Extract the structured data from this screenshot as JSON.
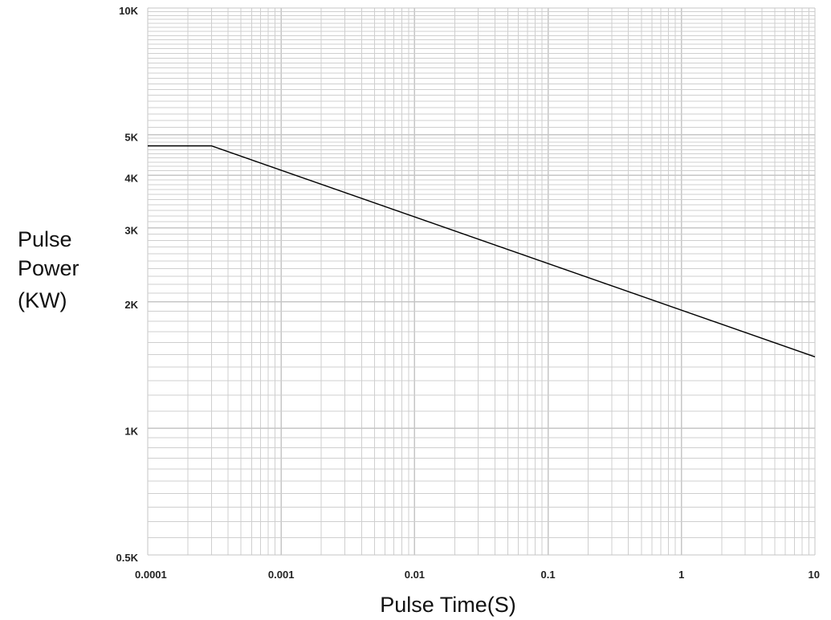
{
  "chart_data": {
    "type": "line",
    "title": "",
    "xlabel": "Pulse Time(S)",
    "ylabel_lines": [
      "Pulse",
      "Power",
      "(KW)"
    ],
    "x_scale": "log",
    "y_scale": "log",
    "xlim": [
      0.0001,
      10
    ],
    "ylim": [
      0.5,
      10
    ],
    "x_ticks": [
      {
        "value": 0.0001,
        "label": "0.0001"
      },
      {
        "value": 0.001,
        "label": "0.001"
      },
      {
        "value": 0.01,
        "label": "0.01"
      },
      {
        "value": 0.1,
        "label": "0.1"
      },
      {
        "value": 1,
        "label": "1"
      },
      {
        "value": 10,
        "label": "10"
      }
    ],
    "y_ticks": [
      {
        "value": 0.5,
        "label": "0.5K"
      },
      {
        "value": 1,
        "label": "1K"
      },
      {
        "value": 2,
        "label": "2K"
      },
      {
        "value": 3,
        "label": "3K"
      },
      {
        "value": 4,
        "label": "4K"
      },
      {
        "value": 5,
        "label": "5K"
      },
      {
        "value": 10,
        "label": "10K"
      }
    ],
    "grid": true,
    "legend": "none",
    "series": [
      {
        "x": [
          0.0001,
          0.0003,
          10
        ],
        "y": [
          4.7,
          4.7,
          1.48
        ],
        "color": "#000000"
      }
    ],
    "colors": {
      "grid": "#cccccc",
      "line": "#000000",
      "text": "#222222"
    }
  }
}
